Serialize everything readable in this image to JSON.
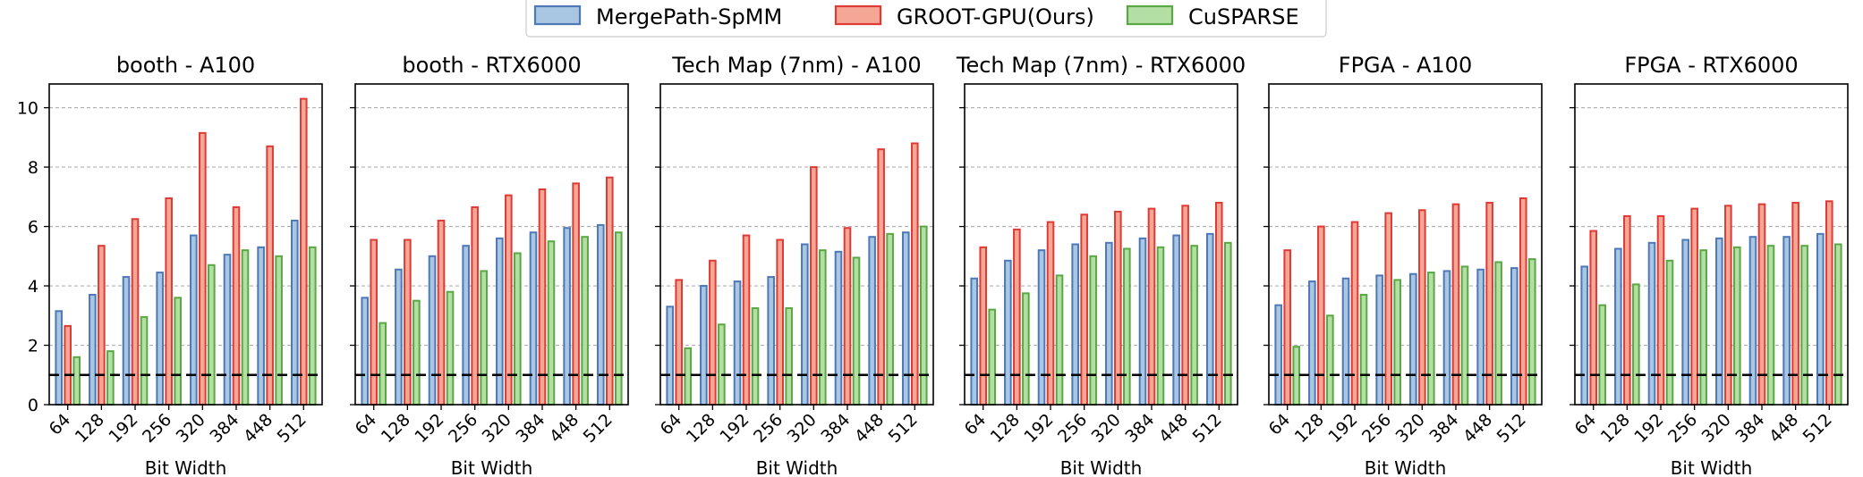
{
  "legend": [
    {
      "name": "MergePath-SpMM",
      "fill": "#a9c6e2",
      "stroke": "#4e79b6"
    },
    {
      "name": "GROOT-GPU(Ours)",
      "fill": "#f4a795",
      "stroke": "#df3b36"
    },
    {
      "name": "CuSPARSE",
      "fill": "#b4dfa4",
      "stroke": "#5aa845"
    }
  ],
  "colors": {
    "mergepath_stroke": "#4e79b6",
    "groot_stroke": "#df3b36",
    "cusparse_stroke": "#5aa845",
    "grid": "#b0b0b0",
    "baseline": "#000000"
  },
  "chart_data": [
    {
      "type": "bar",
      "title": "booth - A100",
      "xlabel": "Bit Width",
      "categories": [
        "64",
        "128",
        "192",
        "256",
        "320",
        "384",
        "448",
        "512"
      ],
      "ylim": [
        0,
        10.8
      ],
      "yticks": [
        0,
        2,
        4,
        6,
        8,
        10
      ],
      "series": [
        {
          "name": "MergePath-SpMM",
          "values": [
            3.15,
            3.7,
            4.3,
            4.45,
            5.7,
            5.05,
            5.3,
            6.2
          ]
        },
        {
          "name": "GROOT-GPU(Ours)",
          "values": [
            2.65,
            5.35,
            6.25,
            6.95,
            9.15,
            6.65,
            8.7,
            10.3
          ]
        },
        {
          "name": "CuSPARSE",
          "values": [
            1.6,
            1.8,
            2.95,
            3.6,
            4.7,
            5.2,
            5.0,
            5.3
          ]
        }
      ],
      "reference_line": 1.0,
      "grid": "horizontal dashed"
    },
    {
      "type": "bar",
      "title": "booth - RTX6000",
      "xlabel": "Bit Width",
      "categories": [
        "64",
        "128",
        "192",
        "256",
        "320",
        "384",
        "448",
        "512"
      ],
      "ylim": [
        0,
        10.8
      ],
      "series": [
        {
          "name": "MergePath-SpMM",
          "values": [
            3.6,
            4.55,
            5.0,
            5.35,
            5.6,
            5.8,
            5.95,
            6.05
          ]
        },
        {
          "name": "GROOT-GPU(Ours)",
          "values": [
            5.55,
            5.55,
            6.2,
            6.65,
            7.05,
            7.25,
            7.45,
            7.65
          ]
        },
        {
          "name": "CuSPARSE",
          "values": [
            2.75,
            3.5,
            3.8,
            4.5,
            5.1,
            5.5,
            5.65,
            5.8
          ]
        }
      ],
      "reference_line": 1.0,
      "grid": "horizontal dashed"
    },
    {
      "type": "bar",
      "title": "Tech Map (7nm) - A100",
      "xlabel": "Bit Width",
      "categories": [
        "64",
        "128",
        "192",
        "256",
        "320",
        "384",
        "448",
        "512"
      ],
      "ylim": [
        0,
        10.8
      ],
      "series": [
        {
          "name": "MergePath-SpMM",
          "values": [
            3.3,
            4.0,
            4.15,
            4.3,
            5.4,
            5.15,
            5.65,
            5.8
          ]
        },
        {
          "name": "GROOT-GPU(Ours)",
          "values": [
            4.2,
            4.85,
            5.7,
            5.55,
            8.0,
            5.95,
            8.6,
            8.8
          ]
        },
        {
          "name": "CuSPARSE",
          "values": [
            1.9,
            2.7,
            3.25,
            3.25,
            5.2,
            4.95,
            5.75,
            6.0
          ]
        }
      ],
      "reference_line": 1.0,
      "grid": "horizontal dashed"
    },
    {
      "type": "bar",
      "title": "Tech Map (7nm) - RTX6000",
      "xlabel": "Bit Width",
      "categories": [
        "64",
        "128",
        "192",
        "256",
        "320",
        "384",
        "448",
        "512"
      ],
      "ylim": [
        0,
        10.8
      ],
      "series": [
        {
          "name": "MergePath-SpMM",
          "values": [
            4.25,
            4.85,
            5.2,
            5.4,
            5.45,
            5.6,
            5.7,
            5.75
          ]
        },
        {
          "name": "GROOT-GPU(Ours)",
          "values": [
            5.3,
            5.9,
            6.15,
            6.4,
            6.5,
            6.6,
            6.7,
            6.8
          ]
        },
        {
          "name": "CuSPARSE",
          "values": [
            3.2,
            3.75,
            4.35,
            5.0,
            5.25,
            5.3,
            5.35,
            5.45
          ]
        }
      ],
      "reference_line": 1.0,
      "grid": "horizontal dashed"
    },
    {
      "type": "bar",
      "title": "FPGA - A100",
      "xlabel": "Bit Width",
      "categories": [
        "64",
        "128",
        "192",
        "256",
        "320",
        "384",
        "448",
        "512"
      ],
      "ylim": [
        0,
        10.8
      ],
      "series": [
        {
          "name": "MergePath-SpMM",
          "values": [
            3.35,
            4.15,
            4.25,
            4.35,
            4.4,
            4.5,
            4.55,
            4.6
          ]
        },
        {
          "name": "GROOT-GPU(Ours)",
          "values": [
            5.2,
            6.0,
            6.15,
            6.45,
            6.55,
            6.75,
            6.8,
            6.95
          ]
        },
        {
          "name": "CuSPARSE",
          "values": [
            1.95,
            3.0,
            3.7,
            4.2,
            4.45,
            4.65,
            4.8,
            4.9
          ]
        }
      ],
      "reference_line": 1.0,
      "grid": "horizontal dashed"
    },
    {
      "type": "bar",
      "title": "FPGA - RTX6000",
      "xlabel": "Bit Width",
      "categories": [
        "64",
        "128",
        "192",
        "256",
        "320",
        "384",
        "448",
        "512"
      ],
      "ylim": [
        0,
        10.8
      ],
      "series": [
        {
          "name": "MergePath-SpMM",
          "values": [
            4.65,
            5.25,
            5.45,
            5.55,
            5.6,
            5.65,
            5.65,
            5.75
          ]
        },
        {
          "name": "GROOT-GPU(Ours)",
          "values": [
            5.85,
            6.35,
            6.35,
            6.6,
            6.7,
            6.75,
            6.8,
            6.85
          ]
        },
        {
          "name": "CuSPARSE",
          "values": [
            3.35,
            4.05,
            4.85,
            5.2,
            5.3,
            5.35,
            5.35,
            5.4
          ]
        }
      ],
      "reference_line": 1.0,
      "grid": "horizontal dashed"
    }
  ]
}
